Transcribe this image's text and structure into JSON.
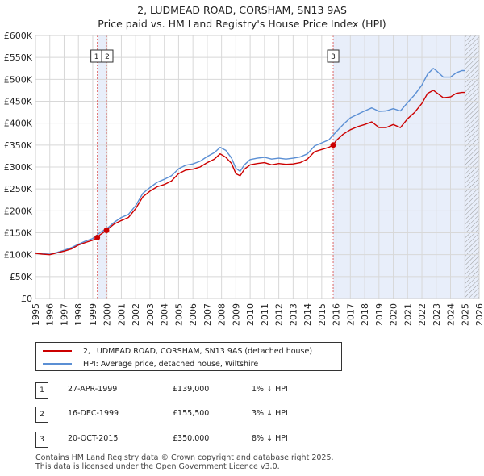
{
  "title_line1": "2, LUDMEAD ROAD, CORSHAM, SN13 9AS",
  "title_line2": "Price paid vs. HM Land Registry's House Price Index (HPI)",
  "chart_data": {
    "type": "line",
    "title": "2, LUDMEAD ROAD, CORSHAM, SN13 9AS — Price paid vs. HM Land Registry's House Price Index (HPI)",
    "xlabel": "",
    "ylabel": "",
    "xlim": [
      1995.0,
      2026.0
    ],
    "ylim": [
      0,
      600000
    ],
    "y_ticks": [
      0,
      50000,
      100000,
      150000,
      200000,
      250000,
      300000,
      350000,
      400000,
      450000,
      500000,
      550000,
      600000
    ],
    "y_tick_labels": [
      "£0",
      "£50K",
      "£100K",
      "£150K",
      "£200K",
      "£250K",
      "£300K",
      "£350K",
      "£400K",
      "£450K",
      "£500K",
      "£550K",
      "£600K"
    ],
    "x_tick_labels": [
      "1995",
      "1996",
      "1997",
      "1998",
      "1999",
      "2000",
      "2001",
      "2002",
      "2003",
      "2004",
      "2005",
      "2006",
      "2007",
      "2008",
      "2009",
      "2010",
      "2011",
      "2012",
      "2013",
      "2014",
      "2015",
      "2016",
      "2017",
      "2018",
      "2019",
      "2020",
      "2021",
      "2022",
      "2023",
      "2024",
      "2025",
      "2026"
    ],
    "grid": true,
    "colors": {
      "property": "#cc0000",
      "hpi": "#5b8fd4",
      "shade": "#e8eefa",
      "vline": "#dd6666",
      "grid": "#d8d8d8"
    },
    "shaded_regions": [
      {
        "from": 1999.32,
        "to": 1999.96
      },
      {
        "from": 2015.8,
        "to": 2026.0
      }
    ],
    "hatched_region": {
      "from": 2025.0,
      "to": 2026.0
    },
    "series": [
      {
        "name": "2, LUDMEAD ROAD, CORSHAM, SN13 9AS (detached house)",
        "color": "#cc0000",
        "x": [
          1995.0,
          1995.5,
          1996.0,
          1996.5,
          1997.0,
          1997.5,
          1998.0,
          1998.5,
          1999.0,
          1999.32,
          1999.5,
          1999.96,
          2000.5,
          2001.0,
          2001.5,
          2002.0,
          2002.5,
          2003.0,
          2003.5,
          2004.0,
          2004.5,
          2005.0,
          2005.5,
          2006.0,
          2006.5,
          2007.0,
          2007.5,
          2007.9,
          2008.3,
          2008.7,
          2009.0,
          2009.3,
          2009.6,
          2010.0,
          2010.5,
          2011.0,
          2011.5,
          2012.0,
          2012.5,
          2013.0,
          2013.5,
          2014.0,
          2014.5,
          2015.0,
          2015.5,
          2015.8,
          2016.0,
          2016.5,
          2017.0,
          2017.5,
          2018.0,
          2018.5,
          2019.0,
          2019.5,
          2020.0,
          2020.5,
          2021.0,
          2021.5,
          2022.0,
          2022.4,
          2022.8,
          2023.0,
          2023.5,
          2024.0,
          2024.4,
          2024.8,
          2025.0
        ],
        "values": [
          103000,
          101000,
          100000,
          104000,
          108000,
          113000,
          122000,
          128000,
          133000,
          139000,
          145000,
          155500,
          170000,
          178000,
          185000,
          205000,
          232000,
          245000,
          255000,
          260000,
          268000,
          285000,
          293000,
          295000,
          300000,
          310000,
          318000,
          330000,
          322000,
          308000,
          285000,
          280000,
          295000,
          305000,
          308000,
          310000,
          305000,
          308000,
          306000,
          307000,
          310000,
          318000,
          335000,
          340000,
          345000,
          350000,
          360000,
          375000,
          385000,
          392000,
          397000,
          403000,
          390000,
          390000,
          397000,
          390000,
          410000,
          425000,
          445000,
          468000,
          475000,
          470000,
          458000,
          460000,
          468000,
          470000,
          470000
        ]
      },
      {
        "name": "HPI: Average price, detached house, Wiltshire",
        "color": "#5b8fd4",
        "x": [
          1995.0,
          1995.5,
          1996.0,
          1996.5,
          1997.0,
          1997.5,
          1998.0,
          1998.5,
          1999.0,
          1999.5,
          2000.0,
          2000.5,
          2001.0,
          2001.5,
          2002.0,
          2002.5,
          2003.0,
          2003.5,
          2004.0,
          2004.5,
          2005.0,
          2005.5,
          2006.0,
          2006.5,
          2007.0,
          2007.5,
          2007.9,
          2008.3,
          2008.7,
          2009.0,
          2009.3,
          2009.6,
          2010.0,
          2010.5,
          2011.0,
          2011.5,
          2012.0,
          2012.5,
          2013.0,
          2013.5,
          2014.0,
          2014.5,
          2015.0,
          2015.5,
          2016.0,
          2016.5,
          2017.0,
          2017.5,
          2018.0,
          2018.5,
          2019.0,
          2019.5,
          2020.0,
          2020.5,
          2021.0,
          2021.5,
          2022.0,
          2022.4,
          2022.8,
          2023.0,
          2023.5,
          2024.0,
          2024.4,
          2024.8,
          2025.0
        ],
        "values": [
          104000,
          102000,
          101000,
          105000,
          110000,
          116000,
          124000,
          131000,
          137000,
          150000,
          160000,
          174000,
          185000,
          192000,
          212000,
          240000,
          253000,
          265000,
          272000,
          280000,
          296000,
          304000,
          307000,
          313000,
          324000,
          333000,
          345000,
          338000,
          320000,
          297000,
          290000,
          305000,
          317000,
          320000,
          322000,
          318000,
          320000,
          318000,
          320000,
          323000,
          330000,
          348000,
          355000,
          362000,
          380000,
          397000,
          412000,
          420000,
          428000,
          435000,
          427000,
          428000,
          433000,
          428000,
          447000,
          465000,
          487000,
          512000,
          525000,
          520000,
          505000,
          505000,
          515000,
          520000,
          520000
        ]
      }
    ],
    "sales": [
      {
        "label": "1",
        "x": 1999.32,
        "value": 139000
      },
      {
        "label": "2",
        "x": 1999.96,
        "value": 155500
      },
      {
        "label": "3",
        "x": 2015.8,
        "value": 350000
      }
    ]
  },
  "legend": {
    "property_label": "2, LUDMEAD ROAD, CORSHAM, SN13 9AS (detached house)",
    "hpi_label": "HPI: Average price, detached house, Wiltshire"
  },
  "transactions": [
    {
      "num": "1",
      "date": "27-APR-1999",
      "price": "£139,000",
      "hpi": "1% ↓ HPI"
    },
    {
      "num": "2",
      "date": "16-DEC-1999",
      "price": "£155,500",
      "hpi": "3% ↓ HPI"
    },
    {
      "num": "3",
      "date": "20-OCT-2015",
      "price": "£350,000",
      "hpi": "8% ↓ HPI"
    }
  ],
  "footer": {
    "line1": "Contains HM Land Registry data © Crown copyright and database right 2025.",
    "line2": "This data is licensed under the Open Government Licence v3.0."
  }
}
